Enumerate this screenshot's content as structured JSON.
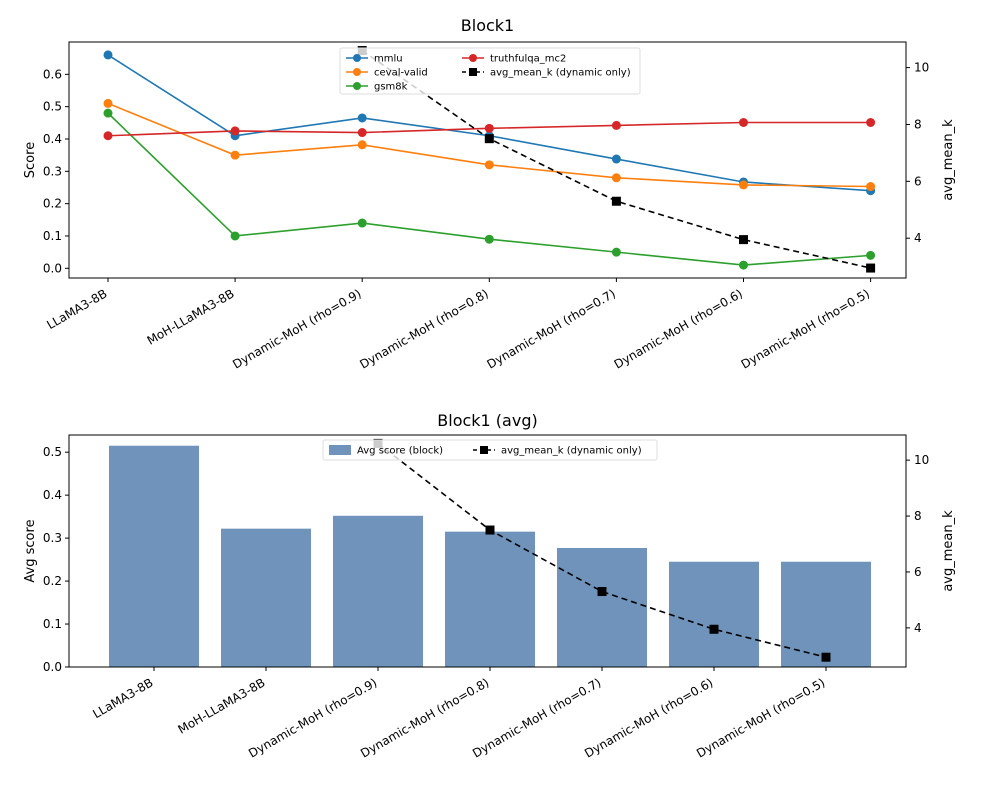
{
  "chart_data": [
    {
      "type": "line",
      "title": "Block1",
      "ylabel": "Score",
      "y2label": "avg_mean_k",
      "categories": [
        "LLaMA3-8B",
        "MoH-LLaMA3-8B",
        "Dynamic-MoH (rho=0.9)",
        "Dynamic-MoH (rho=0.8)",
        "Dynamic-MoH (rho=0.7)",
        "Dynamic-MoH (rho=0.6)",
        "Dynamic-MoH (rho=0.5)"
      ],
      "ylim": [
        -0.03,
        0.7
      ],
      "yticks": [
        "0.0",
        "0.1",
        "0.2",
        "0.3",
        "0.4",
        "0.5",
        "0.6"
      ],
      "y2lim": [
        2.6,
        10.9
      ],
      "y2ticks": [
        "4",
        "6",
        "8",
        "10"
      ],
      "grid": false,
      "legend_position": "top-center",
      "series": [
        {
          "name": "mmlu",
          "color": "#1f77b4",
          "values": [
            0.66,
            0.41,
            0.465,
            0.41,
            0.338,
            0.267,
            0.24
          ]
        },
        {
          "name": "ceval-valid",
          "color": "#ff7f0e",
          "values": [
            0.51,
            0.35,
            0.382,
            0.32,
            0.28,
            0.258,
            0.253
          ]
        },
        {
          "name": "gsm8k",
          "color": "#2ca02c",
          "values": [
            0.48,
            0.1,
            0.14,
            0.09,
            0.05,
            0.01,
            0.04
          ]
        },
        {
          "name": "truthfulqa_mc2",
          "color": "#d62728",
          "values": [
            0.41,
            0.425,
            0.42,
            0.433,
            0.442,
            0.451,
            0.451
          ]
        }
      ],
      "secondary_series": {
        "name": "avg_mean_k (dynamic only)",
        "color": "#000000",
        "values": [
          null,
          null,
          10.6,
          7.5,
          5.3,
          3.95,
          2.95
        ]
      }
    },
    {
      "type": "bar",
      "title": "Block1 (avg)",
      "ylabel": "Avg score",
      "y2label": "avg_mean_k",
      "categories": [
        "LLaMA3-8B",
        "MoH-LLaMA3-8B",
        "Dynamic-MoH (rho=0.9)",
        "Dynamic-MoH (rho=0.8)",
        "Dynamic-MoH (rho=0.7)",
        "Dynamic-MoH (rho=0.6)",
        "Dynamic-MoH (rho=0.5)"
      ],
      "ylim": [
        0,
        0.54
      ],
      "yticks": [
        "0.0",
        "0.1",
        "0.2",
        "0.3",
        "0.4",
        "0.5"
      ],
      "y2lim": [
        2.6,
        10.9
      ],
      "y2ticks": [
        "4",
        "6",
        "8",
        "10"
      ],
      "grid": false,
      "legend_position": "top-center",
      "series": [
        {
          "name": "Avg score (block)",
          "color": "#6f93bb",
          "values": [
            0.515,
            0.322,
            0.352,
            0.315,
            0.277,
            0.245,
            0.245
          ]
        }
      ],
      "secondary_series": {
        "name": "avg_mean_k (dynamic only)",
        "color": "#000000",
        "values": [
          null,
          null,
          10.6,
          7.5,
          5.3,
          3.95,
          2.95
        ]
      }
    }
  ]
}
